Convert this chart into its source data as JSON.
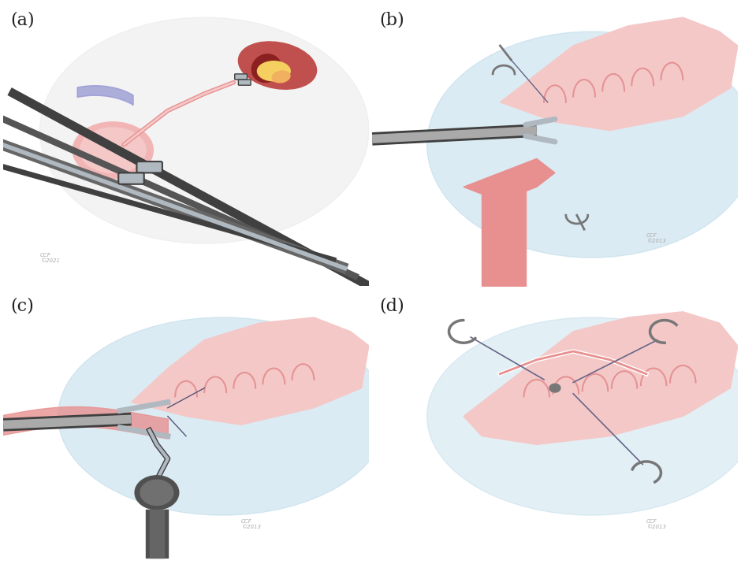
{
  "panel_labels": [
    "(a)",
    "(b)",
    "(c)",
    "(d)"
  ],
  "label_fontsize": 16,
  "label_color": "#222222",
  "bg_color": "#ffffff",
  "tissue_pink": "#f0b0b0",
  "tissue_pink_light": "#f5c8c8",
  "tissue_pink_dark": "#d97070",
  "tissue_pink_medium": "#e89090",
  "bladder_pink": "#f2b5b5",
  "kidney_red": "#c0504d",
  "kidney_orange": "#f0b060",
  "kidney_yellow": "#f5d060",
  "instrument_dark": "#404040",
  "instrument_gray": "#888888",
  "instrument_light": "#cccccc",
  "instrument_silver": "#b0b8c0",
  "suture_gray": "#777777",
  "blue_highlight": "#b8d8e8",
  "watermark_color": "#aaaaaa",
  "figsize": [
    9.4,
    7.3
  ],
  "dpi": 100
}
